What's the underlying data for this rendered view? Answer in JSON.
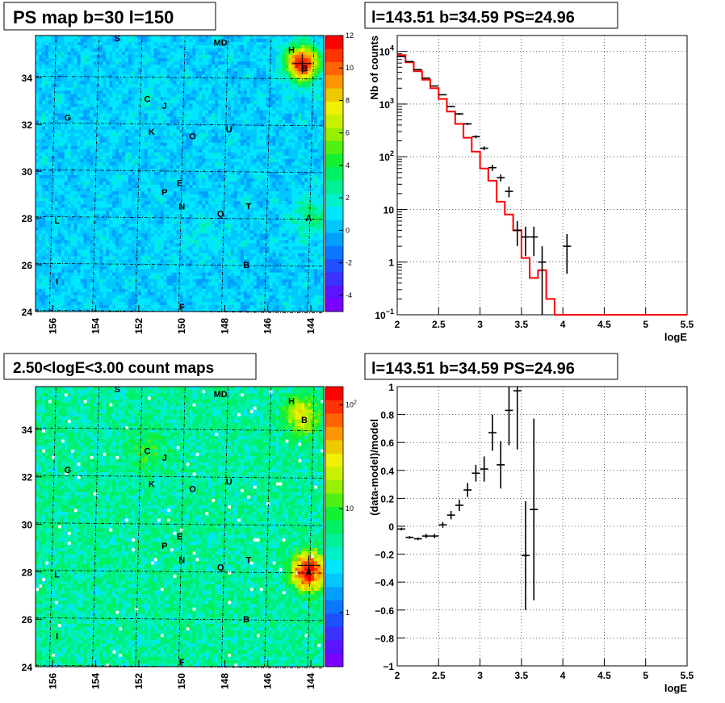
{
  "chart_data": [
    {
      "type": "heatmap",
      "title": "PS map b=30 l=150",
      "x_ticks": [
        "156",
        "154",
        "152",
        "150",
        "148",
        "146",
        "144"
      ],
      "y_ticks": [
        "24",
        "26",
        "28",
        "30",
        "32",
        "34"
      ],
      "xlim": [
        156.8,
        143.4
      ],
      "ylim": [
        24,
        35.8
      ],
      "palette_ticks": [
        "-4",
        "-2",
        "0",
        "2",
        "4",
        "6",
        "8",
        "10",
        "12"
      ],
      "palette_range": [
        -5,
        12
      ],
      "background_value": 0.5,
      "hotspots": [
        {
          "l": 144.4,
          "b": 34.6,
          "peak": 12,
          "width": 0.75
        },
        {
          "l": 144.0,
          "b": 28.0,
          "peak": 2.5,
          "width": 0.9
        },
        {
          "l": 149.0,
          "b": 27.4,
          "peak": 0.8,
          "width": 1.0
        },
        {
          "l": 151.5,
          "b": 33.2,
          "peak": 0.8,
          "width": 0.8
        }
      ],
      "sources": [
        {
          "name": "S",
          "l": 153.0,
          "b": 35.7
        },
        {
          "name": "MD",
          "l": 148.2,
          "b": 35.5
        },
        {
          "name": "H",
          "l": 144.9,
          "b": 35.2
        },
        {
          "name": "B",
          "l": 144.3,
          "b": 34.4
        },
        {
          "name": "C",
          "l": 151.6,
          "b": 33.1
        },
        {
          "name": "J",
          "l": 150.8,
          "b": 32.8
        },
        {
          "name": "G",
          "l": 155.3,
          "b": 32.3
        },
        {
          "name": "K",
          "l": 151.4,
          "b": 31.7
        },
        {
          "name": "O",
          "l": 149.5,
          "b": 31.5
        },
        {
          "name": "U",
          "l": 147.8,
          "b": 31.8
        },
        {
          "name": "E",
          "l": 150.1,
          "b": 29.5
        },
        {
          "name": "P",
          "l": 150.8,
          "b": 29.1
        },
        {
          "name": "N",
          "l": 150.0,
          "b": 28.5
        },
        {
          "name": "Q",
          "l": 148.2,
          "b": 28.2
        },
        {
          "name": "T",
          "l": 146.9,
          "b": 28.5
        },
        {
          "name": "L",
          "l": 155.8,
          "b": 27.9
        },
        {
          "name": "A",
          "l": 144.1,
          "b": 28.0
        },
        {
          "name": "B",
          "l": 147.0,
          "b": 26.0
        },
        {
          "name": "I",
          "l": 155.8,
          "b": 25.3
        },
        {
          "name": "F",
          "l": 150.0,
          "b": 24.2
        }
      ]
    },
    {
      "type": "line",
      "title": "l=143.51 b=34.59 PS=24.96",
      "xlabel": "logE",
      "ylabel": "Nb of counts",
      "xlim": [
        2,
        5.5
      ],
      "ylim": [
        0.1,
        20000
      ],
      "log_y": true,
      "x_ticks": [
        "2",
        "2.5",
        "3",
        "3.5",
        "4",
        "4.5",
        "5",
        "5.5"
      ],
      "y_ticks": [
        {
          "v": 0.1,
          "base": "10",
          "exp": "−1"
        },
        {
          "v": 1,
          "base": "1",
          "exp": ""
        },
        {
          "v": 10,
          "base": "10",
          "exp": ""
        },
        {
          "v": 100,
          "base": "10",
          "exp": "2"
        },
        {
          "v": 1000,
          "base": "10",
          "exp": "3"
        },
        {
          "v": 10000,
          "base": "10",
          "exp": "4"
        }
      ],
      "grid": true,
      "series": [
        {
          "color": "#ff0000",
          "bin_edges": [
            2.0,
            2.1,
            2.2,
            2.3,
            2.4,
            2.5,
            2.6,
            2.7,
            2.8,
            2.9,
            3.0,
            3.1,
            3.2,
            3.3,
            3.4,
            3.5,
            3.6,
            3.7,
            3.8,
            3.9,
            4.0,
            5.5
          ],
          "values": [
            8500,
            6200,
            4200,
            2900,
            2000,
            1250,
            720,
            420,
            230,
            125,
            60,
            35,
            14,
            8,
            4,
            1.2,
            0.5,
            0.7,
            0.2,
            0.1,
            0.1
          ]
        }
      ],
      "points": [
        {
          "x": 2.05,
          "y": 8000,
          "yerr": [
            8000,
            8000
          ]
        },
        {
          "x": 2.15,
          "y": 6400,
          "yerr": [
            6400,
            6400
          ]
        },
        {
          "x": 2.25,
          "y": 4500,
          "yerr": [
            4500,
            4500
          ]
        },
        {
          "x": 2.35,
          "y": 3100,
          "yerr": [
            3100,
            3100
          ]
        },
        {
          "x": 2.45,
          "y": 2200,
          "yerr": [
            2200,
            2200
          ]
        },
        {
          "x": 2.55,
          "y": 1500,
          "yerr": [
            1500,
            1500
          ]
        },
        {
          "x": 2.65,
          "y": 900,
          "yerr": [
            870,
            930
          ]
        },
        {
          "x": 2.75,
          "y": 650,
          "yerr": [
            625,
            675
          ]
        },
        {
          "x": 2.85,
          "y": 420,
          "yerr": [
            400,
            440
          ]
        },
        {
          "x": 2.95,
          "y": 240,
          "yerr": [
            225,
            255
          ]
        },
        {
          "x": 3.05,
          "y": 145,
          "yerr": [
            133,
            157
          ]
        },
        {
          "x": 3.15,
          "y": 62,
          "yerr": [
            54,
            70
          ]
        },
        {
          "x": 3.25,
          "y": 40,
          "yerr": [
            34,
            46
          ]
        },
        {
          "x": 3.35,
          "y": 22,
          "yerr": [
            17,
            27
          ]
        },
        {
          "x": 3.45,
          "y": 4,
          "yerr": [
            2,
            6
          ]
        },
        {
          "x": 3.55,
          "y": 3,
          "yerr": [
            1.3,
            4.7
          ]
        },
        {
          "x": 3.65,
          "y": 3,
          "yerr": [
            1.3,
            4.7
          ]
        },
        {
          "x": 3.75,
          "y": 1,
          "yerr": [
            0.1,
            2
          ]
        },
        {
          "x": 4.05,
          "y": 2,
          "yerr": [
            0.6,
            3.4
          ]
        }
      ]
    },
    {
      "type": "heatmap",
      "title": "2.50<logE<3.00 count maps",
      "x_ticks": [
        "156",
        "154",
        "152",
        "150",
        "148",
        "146",
        "144"
      ],
      "y_ticks": [
        "24",
        "26",
        "28",
        "30",
        "32",
        "34"
      ],
      "xlim": [
        156.8,
        143.4
      ],
      "ylim": [
        24,
        35.8
      ],
      "palette_ticks": [
        {
          "v": 1,
          "base": "1",
          "exp": ""
        },
        {
          "v": 10,
          "base": "10",
          "exp": ""
        },
        {
          "v": 100,
          "base": "10",
          "exp": "2"
        }
      ],
      "palette_range": [
        0.3,
        150
      ],
      "log_z": true,
      "background_value": 5,
      "hotspots": [
        {
          "l": 144.1,
          "b": 28.0,
          "peak": 120,
          "width": 0.55
        },
        {
          "l": 144.4,
          "b": 34.6,
          "peak": 25,
          "width": 0.6
        },
        {
          "l": 151.6,
          "b": 33.1,
          "peak": 4,
          "width": 0.8
        }
      ],
      "sources": [
        {
          "name": "S",
          "l": 153.0,
          "b": 35.7
        },
        {
          "name": "MD",
          "l": 148.2,
          "b": 35.5
        },
        {
          "name": "H",
          "l": 144.9,
          "b": 35.2
        },
        {
          "name": "B",
          "l": 144.3,
          "b": 34.4
        },
        {
          "name": "C",
          "l": 151.6,
          "b": 33.1
        },
        {
          "name": "J",
          "l": 150.8,
          "b": 32.8
        },
        {
          "name": "G",
          "l": 155.3,
          "b": 32.3
        },
        {
          "name": "K",
          "l": 151.4,
          "b": 31.7
        },
        {
          "name": "O",
          "l": 149.5,
          "b": 31.5
        },
        {
          "name": "U",
          "l": 147.8,
          "b": 31.8
        },
        {
          "name": "E",
          "l": 150.1,
          "b": 29.5
        },
        {
          "name": "P",
          "l": 150.8,
          "b": 29.1
        },
        {
          "name": "N",
          "l": 150.0,
          "b": 28.5
        },
        {
          "name": "Q",
          "l": 148.2,
          "b": 28.2
        },
        {
          "name": "T",
          "l": 146.9,
          "b": 28.5
        },
        {
          "name": "L",
          "l": 155.8,
          "b": 27.9
        },
        {
          "name": "A",
          "l": 144.1,
          "b": 28.0
        },
        {
          "name": "B",
          "l": 147.0,
          "b": 26.0
        },
        {
          "name": "I",
          "l": 155.8,
          "b": 25.3
        },
        {
          "name": "F",
          "l": 150.0,
          "b": 24.2
        }
      ]
    },
    {
      "type": "scatter",
      "title": "l=143.51 b=34.59 PS=24.96",
      "xlabel": "logE",
      "ylabel": "(data-model)/model",
      "xlim": [
        2,
        5.5
      ],
      "ylim": [
        -1,
        1
      ],
      "x_ticks": [
        "2",
        "2.5",
        "3",
        "3.5",
        "4",
        "4.5",
        "5",
        "5.5"
      ],
      "y_ticks": [
        "−1",
        "−0.8",
        "−0.6",
        "−0.4",
        "−0.2",
        "0",
        "0.2",
        "0.4",
        "0.6",
        "0.8",
        "1"
      ],
      "grid": true,
      "points": [
        {
          "x": 2.05,
          "y": -0.02,
          "yerr": 0.01
        },
        {
          "x": 2.15,
          "y": -0.08,
          "yerr": 0.01
        },
        {
          "x": 2.25,
          "y": -0.09,
          "yerr": 0.01
        },
        {
          "x": 2.35,
          "y": -0.07,
          "yerr": 0.015
        },
        {
          "x": 2.45,
          "y": -0.07,
          "yerr": 0.015
        },
        {
          "x": 2.55,
          "y": 0.01,
          "yerr": 0.02
        },
        {
          "x": 2.65,
          "y": 0.08,
          "yerr": 0.03
        },
        {
          "x": 2.75,
          "y": 0.15,
          "yerr": 0.04
        },
        {
          "x": 2.85,
          "y": 0.26,
          "yerr": 0.05
        },
        {
          "x": 2.95,
          "y": 0.38,
          "yerr": 0.06
        },
        {
          "x": 3.05,
          "y": 0.41,
          "yerr": 0.09
        },
        {
          "x": 3.15,
          "y": 0.67,
          "yerr": 0.13
        },
        {
          "x": 3.25,
          "y": 0.44,
          "yerr": 0.17
        },
        {
          "x": 3.35,
          "y": 0.83,
          "yerr": 0.25
        },
        {
          "x": 3.45,
          "y": 0.97,
          "yerr": 0.42
        },
        {
          "x": 3.55,
          "y": -0.21,
          "yerr": 0.39
        },
        {
          "x": 3.65,
          "y": 0.12,
          "yerr": 0.65
        }
      ]
    }
  ]
}
